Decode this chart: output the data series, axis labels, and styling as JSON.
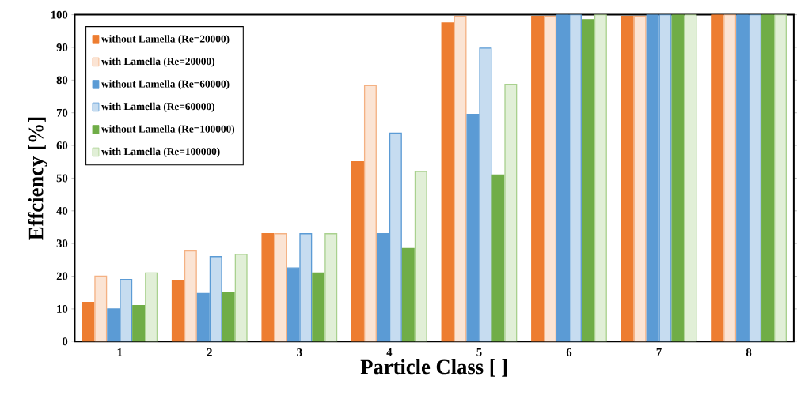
{
  "chart_data": {
    "type": "bar",
    "xlabel": "Particle Class [ ]",
    "ylabel": "Effciency [%]",
    "categories": [
      "1",
      "2",
      "3",
      "4",
      "5",
      "6",
      "7",
      "8"
    ],
    "series": [
      {
        "name": "without Lamella (Re=20000)",
        "color": "#ed7d31",
        "values": [
          12,
          18.5,
          33,
          55,
          97.5,
          99.5,
          99.5,
          100
        ]
      },
      {
        "name": "with Lamella (Re=20000)",
        "color": "#f4b183",
        "values": [
          20,
          27.7,
          33,
          78.3,
          99.5,
          99.5,
          99.5,
          100
        ]
      },
      {
        "name": "without Lamella (Re=60000)",
        "color": "#5b9bd5",
        "values": [
          10,
          14.7,
          22.5,
          33,
          69.5,
          100,
          100,
          100
        ]
      },
      {
        "name": "with Lamella (Re=60000)",
        "color": "#5b9bd5",
        "values": [
          19,
          26,
          33,
          63.8,
          89.8,
          100,
          100,
          100
        ]
      },
      {
        "name": "without Lamella (Re=100000)",
        "color": "#70ad47",
        "values": [
          11,
          15,
          21,
          28.5,
          51,
          98.5,
          100,
          100
        ]
      },
      {
        "name": "with Lamella (Re=100000)",
        "color": "#a9d18e",
        "values": [
          21,
          26.7,
          33,
          52,
          78.7,
          100,
          100,
          100
        ]
      }
    ],
    "ylim": [
      0,
      100
    ],
    "yticks": [
      0,
      10,
      20,
      30,
      40,
      50,
      60,
      70,
      80,
      90,
      100
    ],
    "legend": "top left",
    "grid": false
  }
}
